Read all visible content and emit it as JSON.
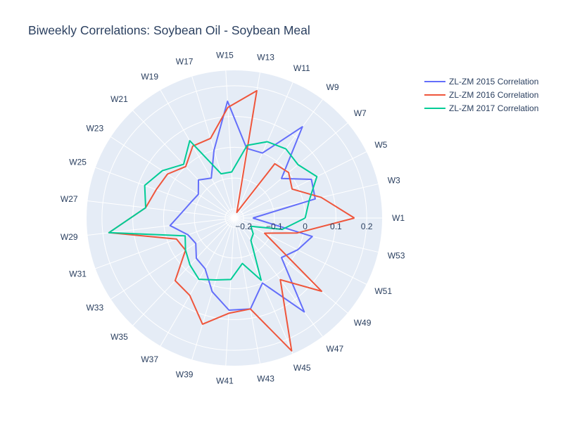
{
  "chart_data": {
    "type": "line",
    "subtype": "polar",
    "title": "Biweekly Correlations: Soybean Oil - Soybean Meal",
    "categories": [
      "W1",
      "W3",
      "W5",
      "W7",
      "W9",
      "W11",
      "W13",
      "W15",
      "W17",
      "W19",
      "W21",
      "W23",
      "W25",
      "W27",
      "W29",
      "W31",
      "W33",
      "W35",
      "W37",
      "W39",
      "W41",
      "W43",
      "W45",
      "W47",
      "W49",
      "W51",
      "W53"
    ],
    "radial_ticks": [
      -0.2,
      -0.1,
      0,
      0.1,
      0.2
    ],
    "radial_tick_labels": [
      "−0.2",
      "−0.1",
      "0",
      "0.1",
      "0.2"
    ],
    "radial_range": [
      -0.23,
      0.25
    ],
    "angular_direction": "counterclockwise",
    "angular_start": "W1 at 0 degrees (east)",
    "grid": true,
    "legend_position": "top-right",
    "series": [
      {
        "name": "ZL-ZM 2015 Correlation",
        "color": "#636efa",
        "values": [
          -0.17,
          0.04,
          0.05,
          -0.03,
          0.14,
          0.0,
          0.0,
          0.15,
          0.0,
          -0.08,
          -0.06,
          -0.09,
          -0.08,
          -0.06,
          -0.02,
          -0.07,
          -0.08,
          -0.05,
          -0.04,
          0.02,
          0.07,
          0.07,
          0.0,
          0.15,
          -0.03,
          0.0,
          0.03
        ]
      },
      {
        "name": "ZL-ZM 2016 Correlation",
        "color": "#EF553B",
        "values": [
          0.16,
          0.06,
          -0.02,
          0.0,
          -0.01,
          -0.21,
          0.19,
          0.13,
          0.04,
          0.04,
          0.0,
          0.03,
          0.04,
          0.06,
          0.18,
          -0.03,
          -0.04,
          0.05,
          0.06,
          0.13,
          0.08,
          0.07,
          0.24,
          0.02,
          0.14,
          -0.12,
          -0.02
        ]
      },
      {
        "name": "ZL-ZM 2017 Correlation",
        "color": "#00cc96",
        "values": [
          0.0,
          0.02,
          0.07,
          0.04,
          0.05,
          0.04,
          0.01,
          -0.08,
          -0.08,
          0.06,
          0.01,
          0.05,
          0.08,
          0.06,
          0.18,
          -0.06,
          -0.04,
          -0.02,
          0.0,
          -0.02,
          -0.03,
          -0.08,
          -0.01,
          -0.14,
          -0.15,
          -0.17,
          -0.07
        ]
      }
    ]
  }
}
